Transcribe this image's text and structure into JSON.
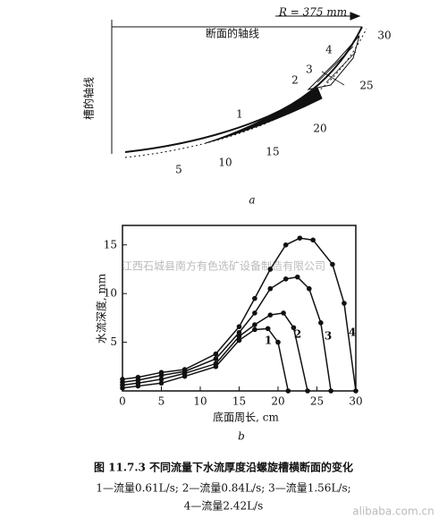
{
  "diagram": {
    "section_axis": "断面的轴线",
    "radius": "R = 375 mm",
    "trough_axis": "槽的轴线",
    "labels": [
      "30",
      "4",
      "3",
      "2",
      "25",
      "1",
      "20",
      "15",
      "10",
      "5"
    ],
    "sublabel": "a"
  },
  "chart_data": {
    "type": "line",
    "xlabel": "底面周长, cm",
    "ylabel": "水流深度, mm",
    "sublabel": "b",
    "xlim": [
      0,
      30
    ],
    "xticks": [
      0,
      5,
      10,
      15,
      20,
      25,
      30
    ],
    "ylim": [
      0,
      17
    ],
    "yticks": [
      5,
      10,
      15
    ],
    "series": [
      {
        "name": "1",
        "color": "#111111",
        "x": [
          0,
          2,
          5,
          8,
          12,
          15,
          17,
          18.7,
          20,
          21.3
        ],
        "values": [
          0.3,
          0.5,
          0.8,
          1.5,
          2.5,
          5.2,
          6.3,
          6.4,
          5,
          0
        ]
      },
      {
        "name": "2",
        "color": "#111111",
        "x": [
          0,
          2,
          5,
          8,
          12,
          15,
          17,
          19,
          20.7,
          22,
          23.8
        ],
        "values": [
          0.6,
          0.8,
          1.2,
          1.8,
          2.8,
          5.6,
          6.8,
          7.8,
          8,
          6.5,
          0
        ]
      },
      {
        "name": "3",
        "color": "#111111",
        "x": [
          0,
          2,
          5,
          8,
          12,
          15,
          17,
          19,
          21,
          22.5,
          24,
          25.5,
          26.8
        ],
        "values": [
          0.9,
          1.1,
          1.6,
          2,
          3.3,
          6,
          8,
          10.5,
          11.5,
          11.7,
          10.5,
          7,
          0
        ]
      },
      {
        "name": "4",
        "color": "#111111",
        "x": [
          0,
          2,
          5,
          8,
          12,
          15,
          17,
          19,
          21,
          22.8,
          24.5,
          27,
          28.5,
          30
        ],
        "values": [
          1.2,
          1.4,
          1.9,
          2.2,
          3.8,
          6.6,
          9.5,
          12.5,
          15,
          15.7,
          15.5,
          13,
          9,
          0
        ]
      }
    ]
  },
  "caption": {
    "title": "图 11.7.3  不同流量下水流厚度沿螺旋槽横断面的变化",
    "line1": "1—流量0.61L/s; 2—流量0.84L/s; 3—流量1.56L/s;",
    "line2": "4—流量2.42L/s"
  },
  "watermark": {
    "company": "江西石城县南方有色选矿设备制造有限公司",
    "site": "alibaba.com.cn"
  }
}
